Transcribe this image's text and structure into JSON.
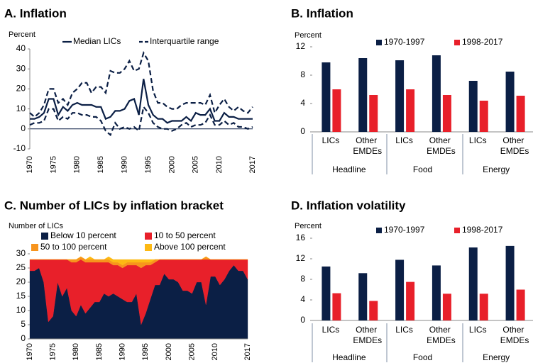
{
  "chart_data": [
    {
      "type": "line",
      "title": "A. Inflation",
      "y_label": "Percent",
      "x": [
        1970,
        1971,
        1972,
        1973,
        1974,
        1975,
        1976,
        1977,
        1978,
        1979,
        1980,
        1981,
        1982,
        1983,
        1984,
        1985,
        1986,
        1987,
        1988,
        1989,
        1990,
        1991,
        1992,
        1993,
        1994,
        1995,
        1996,
        1997,
        1998,
        1999,
        2000,
        2001,
        2002,
        2003,
        2004,
        2005,
        2006,
        2007,
        2008,
        2009,
        2010,
        2011,
        2012,
        2013,
        2014,
        2015,
        2016,
        2017
      ],
      "xlim": [
        1970,
        2017
      ],
      "xticks": [
        1970,
        1975,
        1980,
        1985,
        1990,
        1995,
        2000,
        2005,
        2010,
        2017
      ],
      "ylim": [
        -10,
        40
      ],
      "yticks": [
        -10,
        0,
        10,
        20,
        30,
        40
      ],
      "series": [
        {
          "name": "Median LICs",
          "color": "#0b1f45",
          "dashed": false,
          "values": [
            5,
            5,
            6,
            8,
            15,
            15,
            7,
            11,
            9,
            12,
            13,
            12,
            12,
            12,
            11,
            11,
            5,
            6,
            9,
            9,
            10,
            14,
            15,
            7,
            25,
            12,
            7,
            5,
            5,
            3,
            4,
            4,
            4,
            6,
            4,
            8,
            7,
            7,
            10,
            4,
            4,
            8,
            6,
            6,
            5,
            5,
            5,
            5
          ]
        },
        {
          "name": "Interquartile range",
          "color": "#0b1f45",
          "dashed": true,
          "values": [
            8,
            6,
            8,
            12,
            20,
            20,
            13,
            15,
            12,
            18,
            20,
            23,
            23,
            18,
            21,
            21,
            18,
            29,
            28,
            28,
            30,
            34,
            29,
            30,
            38,
            34,
            19,
            13,
            13,
            11,
            10,
            10,
            12,
            13,
            13,
            13,
            13,
            12,
            17,
            8,
            12,
            15,
            11,
            9,
            11,
            9,
            8,
            11
          ],
          "lower_values": [
            2,
            3,
            3,
            4,
            10,
            10,
            4,
            6,
            5,
            8,
            8,
            7,
            7,
            6,
            6,
            4,
            -1,
            -3,
            3,
            0,
            1,
            0,
            1,
            -1,
            11,
            8,
            3,
            1,
            0,
            0,
            -1,
            0,
            2,
            3,
            1,
            2,
            2,
            3,
            7,
            2,
            2,
            4,
            2,
            3,
            1,
            1,
            0,
            1
          ]
        }
      ]
    },
    {
      "type": "bar",
      "title": "B. Inflation",
      "y_label": "Percent",
      "categories": [
        "LICs",
        "Other EMDEs",
        "LICs",
        "Other EMDEs",
        "LICs",
        "Other EMDEs"
      ],
      "groups": [
        "Headline",
        "Food",
        "Energy"
      ],
      "ylim": [
        0,
        12
      ],
      "yticks": [
        0,
        4,
        8,
        12
      ],
      "series": [
        {
          "name": "1970-1997",
          "color": "#0b1f45",
          "values": [
            9.8,
            10.4,
            10.1,
            10.8,
            7.2,
            8.5
          ]
        },
        {
          "name": "1998-2017",
          "color": "#e8202a",
          "values": [
            6.0,
            5.2,
            6.0,
            5.2,
            4.4,
            5.1
          ]
        }
      ]
    },
    {
      "type": "area",
      "title": "C. Number of LICs by inflation bracket",
      "y_label": "Number of LICs",
      "x": [
        1970,
        1971,
        1972,
        1973,
        1974,
        1975,
        1976,
        1977,
        1978,
        1979,
        1980,
        1981,
        1982,
        1983,
        1984,
        1985,
        1986,
        1987,
        1988,
        1989,
        1990,
        1991,
        1992,
        1993,
        1994,
        1995,
        1996,
        1997,
        1998,
        1999,
        2000,
        2001,
        2002,
        2003,
        2004,
        2005,
        2006,
        2007,
        2008,
        2009,
        2010,
        2011,
        2012,
        2013,
        2014,
        2015,
        2016,
        2017
      ],
      "xlim": [
        1970,
        2017
      ],
      "xticks": [
        1970,
        1975,
        1980,
        1985,
        1990,
        1995,
        2000,
        2005,
        2010,
        2017
      ],
      "ylim": [
        0,
        30
      ],
      "yticks": [
        0,
        5,
        10,
        15,
        20,
        25,
        30
      ],
      "series": [
        {
          "name": "Below 10 percent",
          "color": "#0b1f45",
          "values": [
            24,
            24,
            25,
            20,
            6,
            8,
            20,
            15,
            18,
            10,
            8,
            12,
            9,
            11,
            13,
            13,
            16,
            15,
            16,
            15,
            14,
            13,
            13,
            16,
            5,
            9,
            14,
            19,
            19,
            23,
            21,
            21,
            20,
            17,
            17,
            16,
            20,
            20,
            12,
            22,
            22,
            19,
            21,
            24,
            26,
            24,
            24,
            21
          ]
        },
        {
          "name": "10 to 50 percent",
          "color": "#e8202a",
          "values": [
            4,
            4,
            3,
            8,
            22,
            20,
            8,
            13,
            10,
            17,
            19,
            16,
            18,
            16,
            14,
            14,
            11,
            12,
            10,
            11,
            11,
            13,
            13,
            10,
            20,
            17,
            12,
            8,
            9,
            5,
            7,
            7,
            8,
            11,
            11,
            12,
            8,
            8,
            16,
            6,
            6,
            9,
            7,
            4,
            2,
            4,
            4,
            7
          ]
        },
        {
          "name": "50 to 100 percent",
          "color": "#f7941d",
          "values": [
            0,
            0,
            0,
            0,
            0,
            0,
            0,
            0,
            0,
            1,
            1,
            1,
            1,
            1,
            1,
            1,
            1,
            1,
            1,
            1,
            1,
            1,
            1,
            1,
            2,
            1,
            1,
            1,
            0,
            0,
            0,
            0,
            0,
            0,
            0,
            0,
            0,
            0,
            1,
            0,
            0,
            0,
            0,
            0,
            0,
            0,
            0,
            0
          ]
        },
        {
          "name": "Above 100 percent",
          "color": "#fdb913",
          "values": [
            0,
            0,
            0,
            0,
            0,
            0,
            0,
            0,
            0,
            0,
            0,
            0,
            0,
            1,
            0,
            0,
            0,
            1,
            1,
            1,
            2,
            1,
            1,
            1,
            1,
            1,
            1,
            0,
            0,
            0,
            0,
            0,
            0,
            0,
            0,
            0,
            0,
            0,
            0,
            0,
            0,
            0,
            0,
            0,
            0,
            0,
            0,
            0
          ]
        }
      ]
    },
    {
      "type": "bar",
      "title": "D. Inflation volatility",
      "y_label": "Percent",
      "categories": [
        "LICs",
        "Other EMDEs",
        "LICs",
        "Other EMDEs",
        "LICs",
        "Other EMDEs"
      ],
      "groups": [
        "Headline",
        "Food",
        "Energy"
      ],
      "ylim": [
        0,
        16
      ],
      "yticks": [
        0,
        4,
        8,
        12,
        16
      ],
      "series": [
        {
          "name": "1970-1997",
          "color": "#0b1f45",
          "values": [
            10.5,
            9.2,
            11.8,
            10.7,
            14.2,
            14.5
          ]
        },
        {
          "name": "1998-2017",
          "color": "#e8202a",
          "values": [
            5.3,
            3.8,
            7.5,
            5.2,
            5.2,
            6.0
          ]
        }
      ]
    }
  ]
}
